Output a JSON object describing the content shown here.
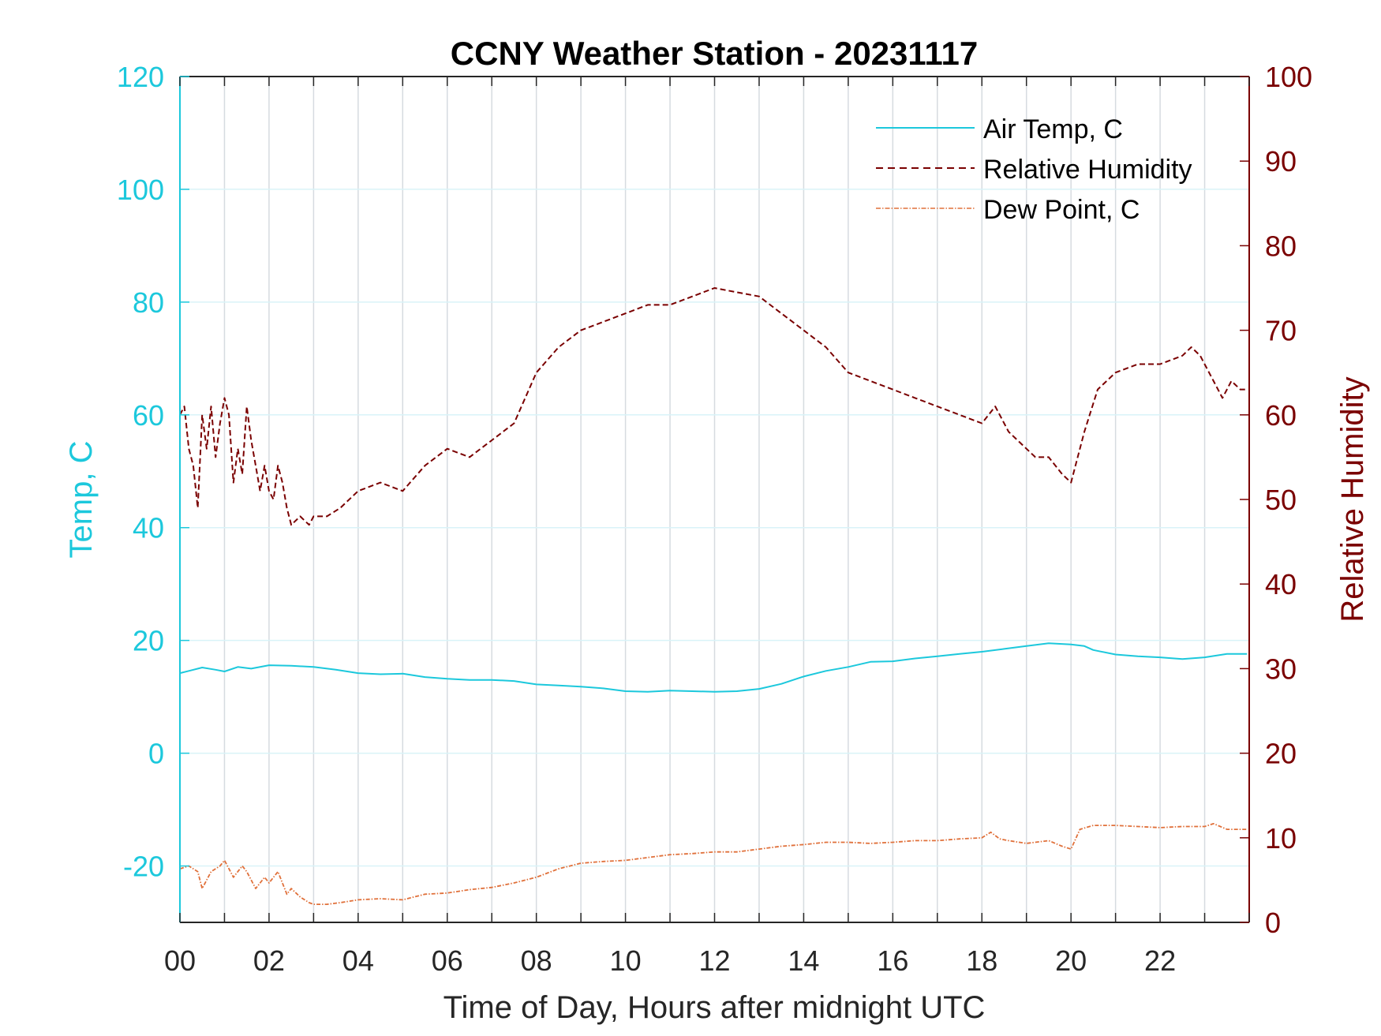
{
  "chart_data": {
    "type": "line",
    "title": "CCNY Weather Station - 20231117",
    "xlabel": "Time of Day, Hours after midnight UTC",
    "ylabel_left": "Temp, C",
    "ylabel_right": "Relative Humidity",
    "xlim": [
      0,
      24
    ],
    "ylim_left": [
      -30,
      120
    ],
    "ylim_right": [
      0,
      100
    ],
    "x_ticks": [
      0,
      2,
      4,
      6,
      8,
      10,
      12,
      14,
      16,
      18,
      20,
      22
    ],
    "x_tick_labels": [
      "00",
      "02",
      "04",
      "06",
      "08",
      "10",
      "12",
      "14",
      "16",
      "18",
      "20",
      "22"
    ],
    "y_left_ticks": [
      -20,
      0,
      20,
      40,
      60,
      80,
      100,
      120
    ],
    "y_right_ticks": [
      0,
      10,
      20,
      30,
      40,
      50,
      60,
      70,
      80,
      90,
      100
    ],
    "grid": true,
    "legend_position": "top-right",
    "colors": {
      "air_temp": "#1cc8dc",
      "relative_humidity": "#7a0000",
      "dew_point": "#e0703a",
      "vertical_grid": "#d6dbe0",
      "horizontal_grid": "#d9f3f8",
      "axis_box": "#262626"
    },
    "series": [
      {
        "name": "Air Temp, C",
        "axis": "left",
        "style": "solid",
        "x": [
          0,
          0.2,
          0.5,
          0.8,
          1.0,
          1.3,
          1.6,
          2.0,
          2.5,
          3.0,
          3.5,
          4.0,
          4.5,
          5.0,
          5.5,
          6.0,
          6.5,
          7.0,
          7.5,
          8.0,
          8.5,
          9.0,
          9.5,
          10.0,
          10.5,
          11.0,
          11.5,
          12.0,
          12.5,
          13.0,
          13.5,
          14.0,
          14.5,
          15.0,
          15.5,
          16.0,
          16.5,
          17.0,
          17.5,
          18.0,
          18.5,
          19.0,
          19.5,
          20.0,
          20.3,
          20.5,
          21.0,
          21.5,
          22.0,
          22.5,
          23.0,
          23.5,
          23.95
        ],
        "values": [
          14.2,
          14.6,
          15.2,
          14.8,
          14.5,
          15.3,
          15.0,
          15.6,
          15.5,
          15.3,
          14.8,
          14.2,
          14.0,
          14.1,
          13.5,
          13.2,
          13.0,
          13.0,
          12.8,
          12.2,
          12.0,
          11.8,
          11.5,
          11.0,
          10.9,
          11.1,
          11.0,
          10.9,
          11.0,
          11.4,
          12.3,
          13.6,
          14.6,
          15.3,
          16.2,
          16.3,
          16.8,
          17.2,
          17.6,
          18.0,
          18.5,
          19.0,
          19.5,
          19.3,
          19.0,
          18.3,
          17.5,
          17.2,
          17.0,
          16.7,
          17.0,
          17.6,
          17.6
        ]
      },
      {
        "name": "Relative Humidity",
        "axis": "right",
        "style": "dashed",
        "x": [
          0,
          0.1,
          0.2,
          0.3,
          0.4,
          0.5,
          0.6,
          0.7,
          0.8,
          0.9,
          1.0,
          1.1,
          1.2,
          1.3,
          1.4,
          1.5,
          1.6,
          1.7,
          1.8,
          1.9,
          2.0,
          2.1,
          2.2,
          2.3,
          2.4,
          2.5,
          2.7,
          2.9,
          3.0,
          3.3,
          3.6,
          4.0,
          4.5,
          5.0,
          5.5,
          6.0,
          6.5,
          7.0,
          7.5,
          8.0,
          8.5,
          9.0,
          9.5,
          10.0,
          10.5,
          11.0,
          11.5,
          12.0,
          12.5,
          13.0,
          13.5,
          14.0,
          14.5,
          15.0,
          15.5,
          16.0,
          16.5,
          17.0,
          17.5,
          18.0,
          18.3,
          18.6,
          19.0,
          19.2,
          19.5,
          19.8,
          20.0,
          20.3,
          20.6,
          21.0,
          21.5,
          22.0,
          22.5,
          22.7,
          22.9,
          23.0,
          23.2,
          23.4,
          23.6,
          23.8,
          23.95
        ],
        "values": [
          60,
          61,
          56,
          54,
          49,
          60,
          56,
          61,
          55,
          59,
          62,
          60,
          52,
          56,
          53,
          61,
          57,
          54,
          51,
          54,
          51,
          50,
          54,
          52,
          49,
          47,
          48,
          47,
          48,
          48,
          49,
          51,
          52,
          51,
          54,
          56,
          55,
          57,
          59,
          65,
          68,
          70,
          71,
          72,
          73,
          73,
          74,
          75,
          74.5,
          74,
          72,
          70,
          68,
          65,
          64,
          63,
          62,
          61,
          60,
          59,
          61,
          58,
          56,
          55,
          55,
          53,
          52,
          58,
          63,
          65,
          66,
          66,
          67,
          68,
          67,
          66,
          64,
          62,
          64,
          63,
          63
        ]
      },
      {
        "name": "Dew Point, C",
        "axis": "left",
        "style": "dash-dot",
        "x": [
          0,
          0.2,
          0.4,
          0.5,
          0.7,
          0.9,
          1.0,
          1.2,
          1.4,
          1.5,
          1.7,
          1.9,
          2.0,
          2.2,
          2.4,
          2.5,
          2.7,
          2.9,
          3.0,
          3.3,
          3.6,
          4.0,
          4.5,
          5.0,
          5.5,
          6.0,
          6.5,
          7.0,
          7.5,
          8.0,
          8.5,
          9.0,
          9.5,
          10.0,
          10.5,
          11.0,
          11.5,
          12.0,
          12.5,
          13.0,
          13.5,
          14.0,
          14.5,
          15.0,
          15.5,
          16.0,
          16.5,
          17.0,
          17.5,
          18.0,
          18.2,
          18.4,
          18.6,
          19.0,
          19.5,
          19.8,
          20.0,
          20.2,
          20.5,
          21.0,
          21.5,
          22.0,
          22.5,
          23.0,
          23.2,
          23.5,
          23.95
        ],
        "values": [
          -20.5,
          -20,
          -21,
          -24,
          -21,
          -20,
          -19,
          -22,
          -20,
          -21,
          -24,
          -22,
          -23,
          -21,
          -25,
          -24,
          -25.5,
          -26.5,
          -26.8,
          -26.8,
          -26.5,
          -26,
          -25.8,
          -26,
          -25,
          -24.8,
          -24.2,
          -23.8,
          -23,
          -22,
          -20.5,
          -19.5,
          -19.2,
          -19,
          -18.5,
          -18,
          -17.8,
          -17.5,
          -17.5,
          -17,
          -16.5,
          -16.2,
          -15.8,
          -15.8,
          -16,
          -15.8,
          -15.5,
          -15.5,
          -15.2,
          -15,
          -14,
          -15.2,
          -15.5,
          -16,
          -15.5,
          -16.5,
          -17,
          -13.5,
          -12.8,
          -12.8,
          -13,
          -13.2,
          -13,
          -13,
          -12.5,
          -13.5,
          -13.5
        ]
      }
    ]
  }
}
